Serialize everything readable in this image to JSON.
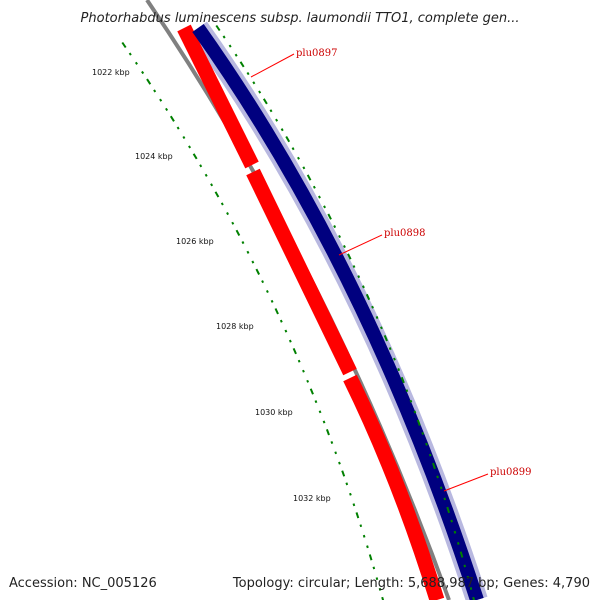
{
  "title": "Photorhabdus luminescens subsp. laumondii TTO1, complete gen...",
  "footer": {
    "accession": "Accession: NC_005126",
    "summary": "Topology: circular; Length: 5,688,987 bp; Genes: 4,790"
  },
  "scale_labels": [
    "1022 kbp",
    "1024 kbp",
    "1026 kbp",
    "1028 kbp",
    "1030 kbp",
    "1032 kbp"
  ],
  "genes": [
    {
      "name": "plu0897"
    },
    {
      "name": "plu0898"
    },
    {
      "name": "plu0899"
    }
  ],
  "colors": {
    "forward_strand": "#ff0000",
    "reverse_strand": "#00007f",
    "backbone": "#808080",
    "ticks": "#008000",
    "labels": "#cc0000",
    "label_line": "#ff0000"
  }
}
